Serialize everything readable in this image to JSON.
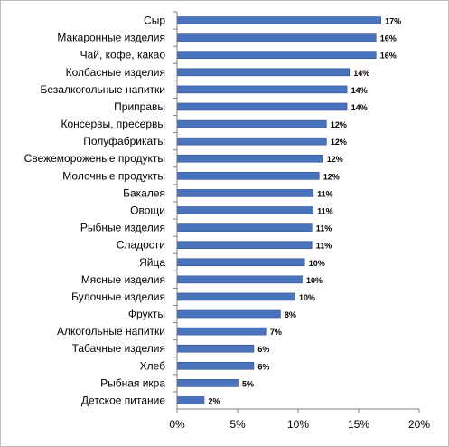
{
  "chart_data": {
    "type": "bar",
    "orientation": "horizontal",
    "categories": [
      "Сыр",
      "Макаронные изделия",
      "Чай, кофе, какао",
      "Колбасные изделия",
      "Безалкогольные напитки",
      "Приправы",
      "Консервы, пресервы",
      "Полуфабрикаты",
      "Свежемороженые продукты",
      "Молочные продукты",
      "Бакалея",
      "Овощи",
      "Рыбные изделия",
      "Сладости",
      "Яйца",
      "Мясные изделия",
      "Булочные изделия",
      "Фрукты",
      "Алкогольные напитки",
      "Табачные изделия",
      "Хлеб",
      "Рыбная икра",
      "Детское питание"
    ],
    "values": [
      16.8,
      16.4,
      16.4,
      14.2,
      14.0,
      14.0,
      12.3,
      12.3,
      12.0,
      11.7,
      11.2,
      11.2,
      11.1,
      11.1,
      10.5,
      10.3,
      9.7,
      8.5,
      7.3,
      6.3,
      6.3,
      5.0,
      2.2
    ],
    "data_labels": [
      "17%",
      "16%",
      "16%",
      "14%",
      "14%",
      "14%",
      "12%",
      "12%",
      "12%",
      "12%",
      "11%",
      "11%",
      "11%",
      "11%",
      "10%",
      "10%",
      "10%",
      "8%",
      "7%",
      "6%",
      "6%",
      "5%",
      "2%"
    ],
    "x_ticks": [
      "0%",
      "5%",
      "10%",
      "15%",
      "20%"
    ],
    "xlim": [
      0,
      20
    ],
    "grid": false,
    "legend": "none",
    "bar_color": "#4A73BE",
    "bar_edge_color": "#2F4F8F"
  }
}
